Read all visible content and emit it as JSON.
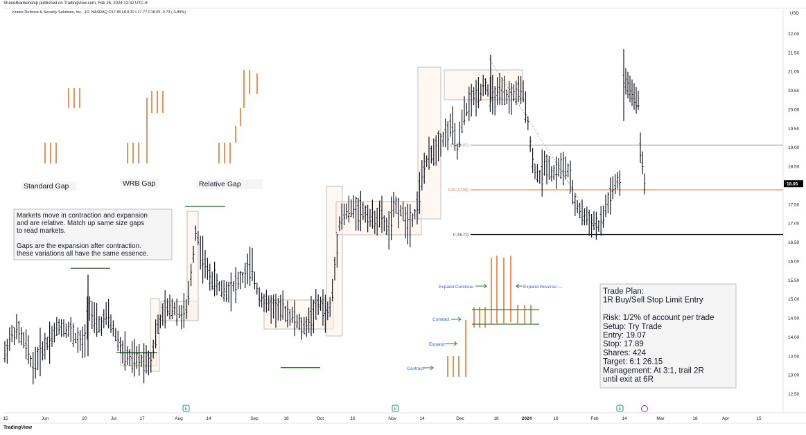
{
  "header": {
    "publisher": "ShaneBlankenship published on TradingView.com, Feb 25, 2024 12:32 UTC-8",
    "title": "Kratos Defense & Security Solutions, Inc., 1D, NASDAQ  O17.89  H18.32  L17.77  C18.05  -0.73 (-3.89%)",
    "currency": "USD"
  },
  "footer": {
    "logo_text": "TradingView"
  },
  "price_axis": {
    "ticks": [
      "22.00",
      "21.50",
      "21.00",
      "20.50",
      "20.00",
      "19.50",
      "19.00",
      "18.50",
      "18.00",
      "17.50",
      "17.00",
      "16.50",
      "16.00",
      "15.50",
      "15.00",
      "14.50",
      "14.00",
      "13.50",
      "13.00",
      "12.50"
    ],
    "last_price": "18.05",
    "last_price_color": "#000000"
  },
  "time_axis": {
    "labels": [
      "15",
      "Jun",
      "20",
      "Jul",
      "17",
      "Aug",
      "14",
      "Sep",
      "18",
      "Oct",
      "16",
      "Nov",
      "14",
      "Dec",
      "18",
      "2024",
      "16",
      "Feb",
      "14",
      "Mar",
      "18",
      "Apr",
      "15"
    ]
  },
  "colors": {
    "candle": "#131722",
    "orange": "#e8762c",
    "green": "#2e7d32",
    "blue": "#2962ff",
    "box": "#c8c8c8",
    "box_fill": "#fdf0e8"
  },
  "chart_data": {
    "type": "ohlc",
    "ylim": [
      12.2,
      22.3
    ],
    "series": [
      {
        "values": []
      }
    ],
    "fib_levels": [
      {
        "label": "0.5 (19.07)",
        "value": 19.07,
        "color": "#888888"
      },
      {
        "label": "0.25 (17.89)",
        "value": 17.89,
        "color": "#e8762c"
      },
      {
        "label": "0 (16.71)",
        "value": 16.71,
        "color": "#131722"
      }
    ],
    "horizontal_segments": [
      {
        "value": 15.82,
        "color": "#2e7d32"
      },
      {
        "value": 17.45,
        "color": "#2e7d32"
      },
      {
        "value": 13.2,
        "color": "#2e7d32"
      },
      {
        "value": 13.6,
        "color": "#2e7d32"
      }
    ]
  },
  "annotations": {
    "gap_labels": [
      "Standard Gap",
      "WRB Gap",
      "Relative Gap"
    ],
    "note": [
      "Markets move in contraction and expansion",
      "and are relative. Match up same size gaps",
      "to read markets.",
      "",
      "Gaps are the expansion after contraction.",
      "these variations all have the same essence."
    ],
    "diagram_labels": {
      "contract1": "Contract",
      "expand": "Expand",
      "contract2": "Contract",
      "expand_continue": "Expand Continue",
      "expand_reverse": "Expand Reverse"
    },
    "trade_plan": [
      "Trade Plan:",
      "1R Buy/Sell Stop Limit Entry",
      "",
      "Risk: 1/2% of account per trade",
      "Setup: Try Trade",
      "Entry: 19.07",
      "Stop: 17.89",
      "Shares: 424",
      "Target: 6:1  26.15",
      "Management: At 3:1, trail 2R",
      "until exit at 6R"
    ]
  }
}
